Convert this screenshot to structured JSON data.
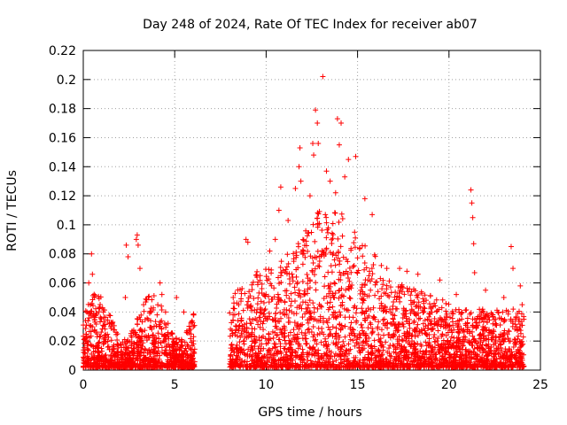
{
  "chart_data": {
    "type": "scatter",
    "title": "Day 248 of 2024, Rate Of TEC Index for receiver ab07",
    "xlabel": "GPS time / hours",
    "ylabel": "ROTI / TECUs",
    "xlim": [
      0,
      25
    ],
    "ylim": [
      0,
      0.22
    ],
    "xticks": [
      0,
      5,
      10,
      15,
      20,
      25
    ],
    "yticks": [
      0,
      0.02,
      0.04,
      0.06,
      0.08,
      0.1,
      0.12,
      0.14,
      0.16,
      0.18,
      0.2,
      0.22
    ],
    "grid": true,
    "marker": "+",
    "color": "#ff0000",
    "data_gap_hours": [
      6.1,
      8.0
    ],
    "series": [
      {
        "values": [
          [
            0.2,
            0.04
          ],
          [
            0.3,
            0.06
          ],
          [
            0.45,
            0.08
          ],
          [
            0.5,
            0.066
          ],
          [
            0.6,
            0.05
          ],
          [
            1.1,
            0.04
          ],
          [
            1.5,
            0.03
          ],
          [
            2.3,
            0.05
          ],
          [
            2.35,
            0.086
          ],
          [
            2.45,
            0.078
          ],
          [
            2.9,
            0.09
          ],
          [
            2.95,
            0.093
          ],
          [
            3.0,
            0.086
          ],
          [
            3.1,
            0.07
          ],
          [
            3.3,
            0.045
          ],
          [
            3.7,
            0.04
          ],
          [
            4.2,
            0.06
          ],
          [
            4.3,
            0.052
          ],
          [
            4.5,
            0.04
          ],
          [
            5.1,
            0.05
          ],
          [
            5.5,
            0.04
          ],
          [
            8.2,
            0.05
          ],
          [
            8.5,
            0.045
          ],
          [
            8.9,
            0.09
          ],
          [
            9.0,
            0.088
          ],
          [
            9.5,
            0.064
          ],
          [
            10.2,
            0.082
          ],
          [
            10.5,
            0.09
          ],
          [
            10.7,
            0.11
          ],
          [
            10.8,
            0.126
          ],
          [
            11.2,
            0.103
          ],
          [
            11.6,
            0.125
          ],
          [
            11.8,
            0.14
          ],
          [
            11.85,
            0.153
          ],
          [
            11.9,
            0.13
          ],
          [
            12.4,
            0.12
          ],
          [
            12.55,
            0.156
          ],
          [
            12.6,
            0.148
          ],
          [
            12.7,
            0.179
          ],
          [
            12.8,
            0.17
          ],
          [
            12.85,
            0.156
          ],
          [
            13.1,
            0.202
          ],
          [
            13.3,
            0.137
          ],
          [
            13.5,
            0.13
          ],
          [
            13.8,
            0.122
          ],
          [
            13.9,
            0.173
          ],
          [
            14.0,
            0.155
          ],
          [
            14.1,
            0.17
          ],
          [
            14.3,
            0.133
          ],
          [
            14.5,
            0.145
          ],
          [
            14.9,
            0.147
          ],
          [
            15.4,
            0.118
          ],
          [
            15.8,
            0.107
          ],
          [
            16.3,
            0.072
          ],
          [
            16.6,
            0.07
          ],
          [
            17.3,
            0.07
          ],
          [
            17.7,
            0.068
          ],
          [
            18.3,
            0.066
          ],
          [
            19.5,
            0.062
          ],
          [
            20.4,
            0.052
          ],
          [
            21.2,
            0.124
          ],
          [
            21.25,
            0.115
          ],
          [
            21.3,
            0.105
          ],
          [
            21.35,
            0.087
          ],
          [
            21.4,
            0.067
          ],
          [
            22.0,
            0.055
          ],
          [
            23.0,
            0.05
          ],
          [
            23.4,
            0.085
          ],
          [
            23.5,
            0.07
          ],
          [
            23.9,
            0.058
          ],
          [
            24.0,
            0.045
          ]
        ]
      }
    ]
  }
}
